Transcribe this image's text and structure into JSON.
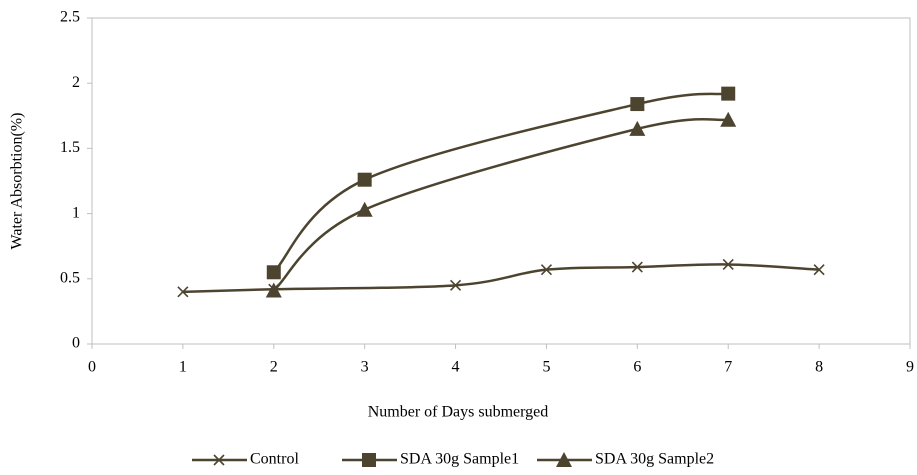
{
  "chart_data": {
    "type": "line",
    "x_label": "Number of Days submerged",
    "y_label": "Water Absorbtion(%)",
    "series": [
      {
        "name": "Control",
        "color": "#4d4430",
        "marker": "x",
        "x": [
          1,
          2,
          4,
          5,
          6,
          7,
          8
        ],
        "values": [
          0.4,
          0.42,
          0.45,
          0.57,
          0.59,
          0.61,
          0.57
        ]
      },
      {
        "name": "SDA 30g Sample1",
        "color": "#4d4430",
        "marker": "square",
        "x": [
          2,
          3,
          6,
          7
        ],
        "values": [
          0.55,
          1.26,
          1.84,
          1.92
        ]
      },
      {
        "name": "SDA 30g Sample2",
        "color": "#4d4430",
        "marker": "triangle",
        "x": [
          2,
          3,
          6,
          7
        ],
        "values": [
          0.41,
          1.03,
          1.65,
          1.72
        ]
      }
    ],
    "xlim": [
      0,
      9
    ],
    "xticks": [
      0,
      1,
      2,
      3,
      4,
      5,
      6,
      7,
      8,
      9
    ],
    "ylim": [
      0,
      2.5
    ],
    "yticks": [
      0,
      0.5,
      1,
      1.5,
      2,
      2.5
    ],
    "legend": "bottom",
    "smooth": true
  }
}
